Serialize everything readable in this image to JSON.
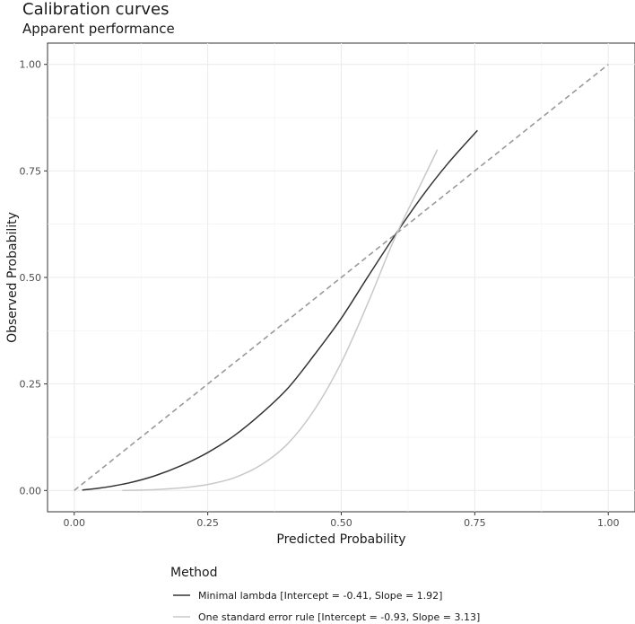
{
  "chart_data": {
    "type": "line",
    "title": "Calibration curves",
    "subtitle": "Apparent performance",
    "xlabel": "Predicted Probability",
    "ylabel": "Observed Probability",
    "xlim": [
      -0.05,
      1.05
    ],
    "ylim": [
      -0.05,
      1.05
    ],
    "x_ticks": [
      0.0,
      0.25,
      0.5,
      0.75,
      1.0
    ],
    "x_tick_labels": [
      "0.00",
      "0.25",
      "0.50",
      "0.75",
      "1.00"
    ],
    "y_ticks": [
      0.0,
      0.25,
      0.5,
      0.75,
      1.0
    ],
    "y_tick_labels": [
      "0.00",
      "0.25",
      "0.50",
      "0.75",
      "1.00"
    ],
    "grid": true,
    "legend": {
      "title": "Method",
      "position": "bottom"
    },
    "reference_line": {
      "x": [
        0,
        1
      ],
      "y": [
        0,
        1
      ],
      "style": "dashed",
      "color": "#999999"
    },
    "series": [
      {
        "name": "Minimal lambda [Intercept = -0.41, Slope = 1.92]",
        "color": "#333333",
        "x": [
          0.015,
          0.05,
          0.1,
          0.15,
          0.2,
          0.25,
          0.3,
          0.35,
          0.4,
          0.45,
          0.5,
          0.55,
          0.6,
          0.65,
          0.7,
          0.755
        ],
        "y": [
          0.001,
          0.006,
          0.017,
          0.034,
          0.058,
          0.089,
          0.129,
          0.18,
          0.24,
          0.319,
          0.404,
          0.502,
          0.598,
          0.688,
          0.768,
          0.845
        ]
      },
      {
        "name": "One standard error rule [Intercept = -0.93, Slope = 3.13]",
        "color": "#c8c8c8",
        "x": [
          0.09,
          0.15,
          0.2,
          0.25,
          0.3,
          0.35,
          0.4,
          0.45,
          0.5,
          0.55,
          0.6,
          0.65,
          0.68
        ],
        "y": [
          0.0,
          0.002,
          0.006,
          0.014,
          0.03,
          0.06,
          0.11,
          0.19,
          0.3,
          0.44,
          0.592,
          0.722,
          0.8
        ]
      }
    ]
  }
}
